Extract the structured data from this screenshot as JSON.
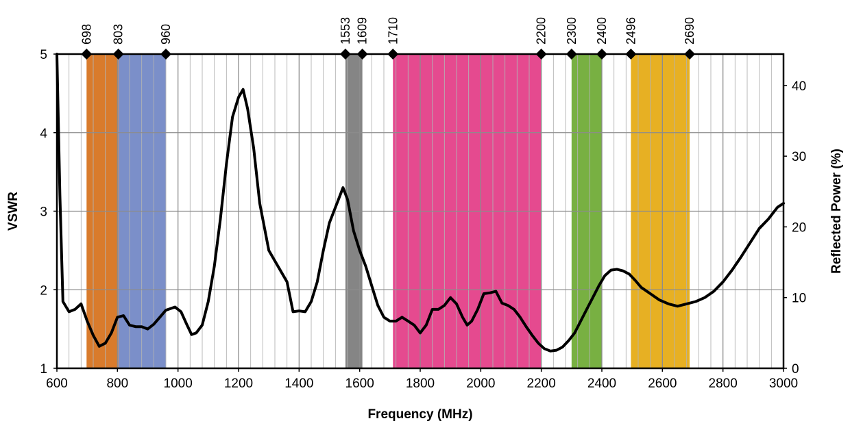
{
  "chart_data": {
    "type": "line",
    "xlabel": "Frequency (MHz)",
    "ylabel": "VSWR",
    "y2label": "Reflected Power (%)",
    "xlim": [
      600,
      3000
    ],
    "ylim": [
      1,
      5
    ],
    "y2lim": [
      0,
      44.44
    ],
    "x_ticks": [
      600,
      800,
      1000,
      1200,
      1400,
      1600,
      1800,
      2000,
      2200,
      2400,
      2600,
      2800,
      3000
    ],
    "y_ticks": [
      1,
      2,
      3,
      4,
      5
    ],
    "y2_ticks": [
      0,
      10,
      20,
      30,
      40
    ],
    "grid": true,
    "bands": [
      {
        "start": 698,
        "end": 803,
        "color": "#d97b2c"
      },
      {
        "start": 803,
        "end": 960,
        "color": "#7b8fc9"
      },
      {
        "start": 1553,
        "end": 1609,
        "color": "#858585"
      },
      {
        "start": 1710,
        "end": 2200,
        "color": "#e54a8f"
      },
      {
        "start": 2300,
        "end": 2400,
        "color": "#78b042"
      },
      {
        "start": 2496,
        "end": 2690,
        "color": "#e7b023"
      }
    ],
    "band_markers": [
      698,
      803,
      960,
      1553,
      1609,
      1710,
      2200,
      2300,
      2400,
      2496,
      2690
    ],
    "series": [
      {
        "color": "#000000",
        "points": [
          [
            600,
            5.0
          ],
          [
            610,
            3.2
          ],
          [
            620,
            1.85
          ],
          [
            640,
            1.72
          ],
          [
            660,
            1.75
          ],
          [
            680,
            1.82
          ],
          [
            700,
            1.6
          ],
          [
            720,
            1.42
          ],
          [
            740,
            1.28
          ],
          [
            760,
            1.32
          ],
          [
            780,
            1.45
          ],
          [
            800,
            1.65
          ],
          [
            820,
            1.67
          ],
          [
            840,
            1.55
          ],
          [
            860,
            1.53
          ],
          [
            880,
            1.53
          ],
          [
            900,
            1.5
          ],
          [
            920,
            1.56
          ],
          [
            940,
            1.65
          ],
          [
            960,
            1.74
          ],
          [
            990,
            1.78
          ],
          [
            1010,
            1.72
          ],
          [
            1030,
            1.55
          ],
          [
            1045,
            1.43
          ],
          [
            1060,
            1.45
          ],
          [
            1080,
            1.55
          ],
          [
            1100,
            1.85
          ],
          [
            1120,
            2.3
          ],
          [
            1140,
            2.9
          ],
          [
            1160,
            3.6
          ],
          [
            1180,
            4.2
          ],
          [
            1200,
            4.45
          ],
          [
            1215,
            4.55
          ],
          [
            1230,
            4.3
          ],
          [
            1250,
            3.8
          ],
          [
            1270,
            3.1
          ],
          [
            1300,
            2.5
          ],
          [
            1330,
            2.3
          ],
          [
            1360,
            2.1
          ],
          [
            1380,
            1.72
          ],
          [
            1400,
            1.73
          ],
          [
            1420,
            1.72
          ],
          [
            1440,
            1.85
          ],
          [
            1460,
            2.1
          ],
          [
            1480,
            2.5
          ],
          [
            1500,
            2.85
          ],
          [
            1530,
            3.15
          ],
          [
            1545,
            3.3
          ],
          [
            1560,
            3.15
          ],
          [
            1580,
            2.75
          ],
          [
            1600,
            2.5
          ],
          [
            1620,
            2.3
          ],
          [
            1640,
            2.05
          ],
          [
            1660,
            1.8
          ],
          [
            1680,
            1.65
          ],
          [
            1700,
            1.6
          ],
          [
            1720,
            1.6
          ],
          [
            1740,
            1.65
          ],
          [
            1760,
            1.6
          ],
          [
            1780,
            1.55
          ],
          [
            1800,
            1.45
          ],
          [
            1820,
            1.55
          ],
          [
            1840,
            1.75
          ],
          [
            1860,
            1.75
          ],
          [
            1880,
            1.8
          ],
          [
            1900,
            1.9
          ],
          [
            1920,
            1.82
          ],
          [
            1940,
            1.65
          ],
          [
            1955,
            1.55
          ],
          [
            1970,
            1.6
          ],
          [
            1990,
            1.75
          ],
          [
            2010,
            1.95
          ],
          [
            2030,
            1.96
          ],
          [
            2050,
            1.98
          ],
          [
            2070,
            1.83
          ],
          [
            2090,
            1.8
          ],
          [
            2110,
            1.75
          ],
          [
            2130,
            1.65
          ],
          [
            2150,
            1.53
          ],
          [
            2170,
            1.42
          ],
          [
            2190,
            1.32
          ],
          [
            2210,
            1.25
          ],
          [
            2230,
            1.22
          ],
          [
            2250,
            1.23
          ],
          [
            2270,
            1.27
          ],
          [
            2290,
            1.35
          ],
          [
            2310,
            1.45
          ],
          [
            2330,
            1.6
          ],
          [
            2350,
            1.75
          ],
          [
            2370,
            1.9
          ],
          [
            2390,
            2.05
          ],
          [
            2410,
            2.18
          ],
          [
            2430,
            2.25
          ],
          [
            2450,
            2.26
          ],
          [
            2470,
            2.24
          ],
          [
            2490,
            2.2
          ],
          [
            2510,
            2.12
          ],
          [
            2530,
            2.03
          ],
          [
            2560,
            1.95
          ],
          [
            2590,
            1.87
          ],
          [
            2620,
            1.82
          ],
          [
            2650,
            1.79
          ],
          [
            2680,
            1.82
          ],
          [
            2710,
            1.85
          ],
          [
            2740,
            1.9
          ],
          [
            2770,
            1.98
          ],
          [
            2800,
            2.1
          ],
          [
            2830,
            2.25
          ],
          [
            2860,
            2.42
          ],
          [
            2890,
            2.6
          ],
          [
            2920,
            2.78
          ],
          [
            2950,
            2.9
          ],
          [
            2980,
            3.05
          ],
          [
            3000,
            3.1
          ]
        ]
      }
    ]
  }
}
